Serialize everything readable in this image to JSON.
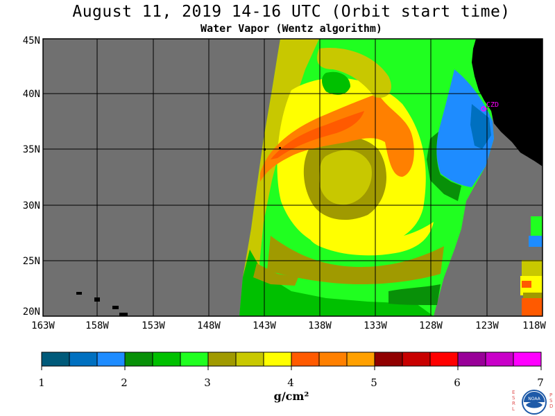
{
  "title": "August 11, 2019  14-16 UTC  (Orbit start time)",
  "subtitle": "Water Vapor (Wentz algorithm)",
  "map": {
    "lat_labels": [
      "45N",
      "40N",
      "35N",
      "30N",
      "25N",
      "20N"
    ],
    "lon_labels": [
      "163W",
      "158W",
      "153W",
      "148W",
      "143W",
      "138W",
      "133W",
      "128W",
      "123W",
      "118W"
    ],
    "station_label": "CZD",
    "colors": {
      "no_data": "#707070",
      "land": "#000000",
      "grid": "#000000",
      "station": "#ff00ff"
    }
  },
  "colorbar": {
    "tick_labels": [
      "1",
      "2",
      "3",
      "4",
      "5",
      "6",
      "7"
    ],
    "units": "g/cm²",
    "colors": [
      "#005a7a",
      "#0070c0",
      "#1e8cff",
      "#089008",
      "#00c000",
      "#20ff20",
      "#a09a00",
      "#c8c800",
      "#ffff00",
      "#ff5a00",
      "#ff8000",
      "#ffa000",
      "#900000",
      "#c80000",
      "#ff0000",
      "#980098",
      "#c800c8",
      "#ff00ff"
    ]
  },
  "logo": {
    "name": "noaa-logo",
    "letters_left": "ESRL",
    "letters_right": "PSD",
    "text": "NOAA"
  }
}
